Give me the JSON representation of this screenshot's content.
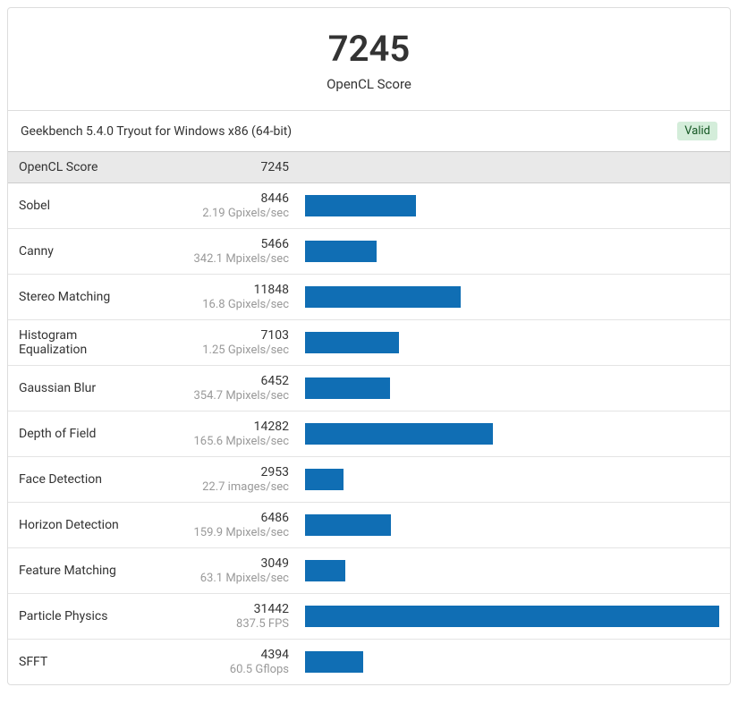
{
  "hero": {
    "score": "7245",
    "label": "OpenCL Score"
  },
  "version": {
    "text": "Geekbench 5.4.0 Tryout for Windows x86 (64-bit)",
    "badge": "Valid"
  },
  "header": {
    "label": "OpenCL Score",
    "score": "7245"
  },
  "colors": {
    "bar_fill": "#106eb4",
    "badge_bg": "#d4edda",
    "badge_fg": "#155724",
    "header_bg": "#e9e9e9",
    "unit_fg": "#999999"
  },
  "bar_max": 31442,
  "rows": [
    {
      "name": "Sobel",
      "score": "8446",
      "unit": "2.19 Gpixels/sec",
      "value": 8446
    },
    {
      "name": "Canny",
      "score": "5466",
      "unit": "342.1 Mpixels/sec",
      "value": 5466
    },
    {
      "name": "Stereo Matching",
      "score": "11848",
      "unit": "16.8 Gpixels/sec",
      "value": 11848
    },
    {
      "name": "Histogram Equalization",
      "score": "7103",
      "unit": "1.25 Gpixels/sec",
      "value": 7103
    },
    {
      "name": "Gaussian Blur",
      "score": "6452",
      "unit": "354.7 Mpixels/sec",
      "value": 6452
    },
    {
      "name": "Depth of Field",
      "score": "14282",
      "unit": "165.6 Mpixels/sec",
      "value": 14282
    },
    {
      "name": "Face Detection",
      "score": "2953",
      "unit": "22.7 images/sec",
      "value": 2953
    },
    {
      "name": "Horizon Detection",
      "score": "6486",
      "unit": "159.9 Mpixels/sec",
      "value": 6486
    },
    {
      "name": "Feature Matching",
      "score": "3049",
      "unit": "63.1 Mpixels/sec",
      "value": 3049
    },
    {
      "name": "Particle Physics",
      "score": "31442",
      "unit": "837.5 FPS",
      "value": 31442
    },
    {
      "name": "SFFT",
      "score": "4394",
      "unit": "60.5 Gflops",
      "value": 4394
    }
  ]
}
